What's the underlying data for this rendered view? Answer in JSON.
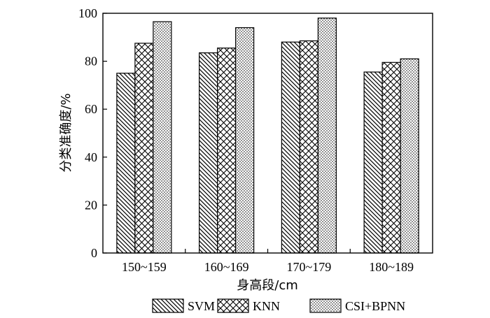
{
  "chart_data": {
    "type": "bar",
    "categories": [
      "150~159",
      "160~169",
      "170~179",
      "180~189"
    ],
    "series": [
      {
        "name": "SVM",
        "pattern": "diagonal-hatch",
        "values": [
          75,
          83.5,
          88,
          75.5
        ]
      },
      {
        "name": "KNN",
        "pattern": "cross-hatch",
        "values": [
          87.5,
          85.5,
          88.5,
          79.5
        ]
      },
      {
        "name": "CSI+BPNN",
        "pattern": "dots",
        "values": [
          96.5,
          94,
          98,
          81
        ]
      }
    ],
    "xlabel": "身高段/cm",
    "ylabel": "分类准确度/%",
    "ylim": [
      0,
      100
    ],
    "yticks": [
      0,
      20,
      40,
      60,
      80,
      100
    ],
    "legend_position": "bottom",
    "grid": false,
    "colors": {
      "ink": "#000000",
      "background": "#ffffff"
    }
  }
}
